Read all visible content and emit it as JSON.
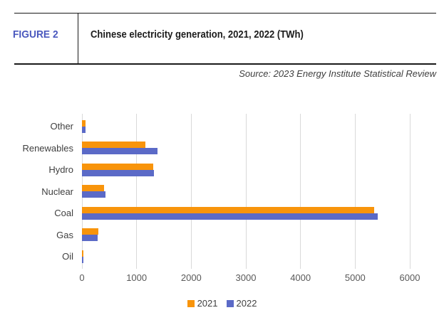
{
  "figure": {
    "label": "FIGURE 2",
    "title": "Chinese electricity generation, 2021, 2022 (TWh)"
  },
  "source": {
    "text": "Source: 2023 Energy Institute Statistical Review"
  },
  "colors": {
    "accent_blue_label": "#4a58be",
    "series_2021": "#f8940b",
    "series_2022": "#5b6ac7",
    "gridline": "#d9d9d9",
    "category_text": "#3f3f3f",
    "tick_text": "#595959",
    "rule": "#1a1a1a"
  },
  "chart_data": {
    "type": "bar",
    "orientation": "horizontal",
    "title": "Chinese electricity generation, 2021, 2022 (TWh)",
    "categories": [
      "Other",
      "Renewables",
      "Hydro",
      "Nuclear",
      "Coal",
      "Gas",
      "Oil"
    ],
    "series": [
      {
        "name": "2021",
        "color": "#f8940b",
        "values": [
          70,
          1155,
          1300,
          410,
          5350,
          300,
          25
        ]
      },
      {
        "name": "2022",
        "color": "#5b6ac7",
        "values": [
          60,
          1380,
          1320,
          435,
          5410,
          290,
          20
        ]
      }
    ],
    "xlabel": "",
    "ylabel": "",
    "xlim": [
      0,
      6000
    ],
    "xticks": [
      0,
      1000,
      2000,
      3000,
      4000,
      5000,
      6000
    ],
    "grid": true,
    "legend_position": "bottom"
  }
}
